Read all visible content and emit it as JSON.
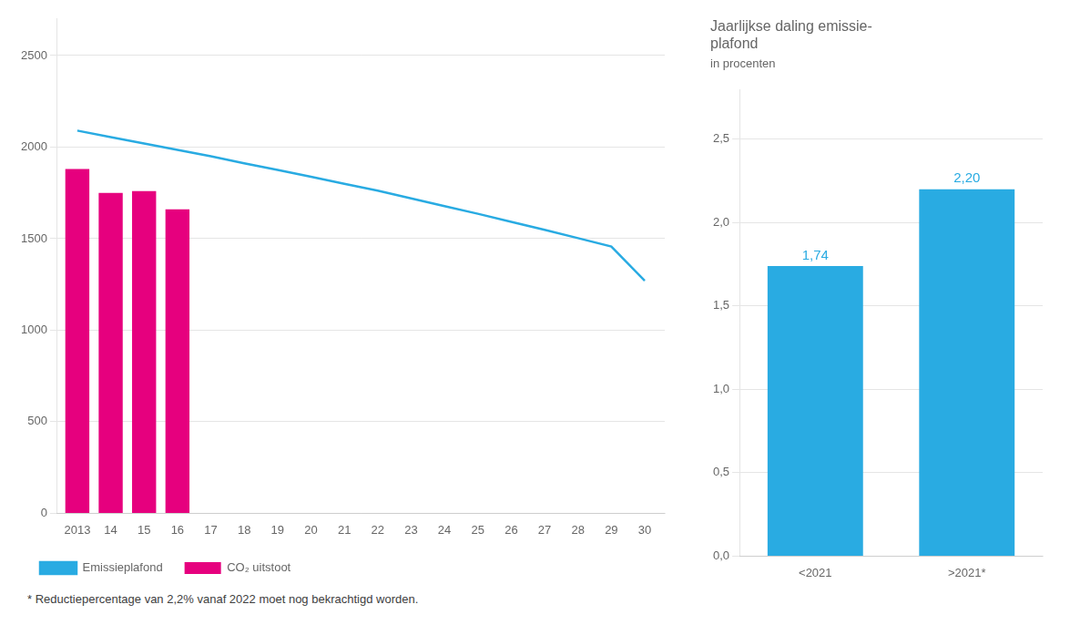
{
  "chart_data": [
    {
      "type": "bar",
      "x": [
        2013,
        2014,
        2015,
        2016,
        2017,
        2018,
        2019,
        2020,
        2021,
        2022,
        2023,
        2024,
        2025,
        2026,
        2027,
        2028,
        2029,
        2030
      ],
      "series": [
        {
          "name": "CO₂ uitstoot",
          "type": "bar",
          "color": "#E6007E",
          "values": [
            1880,
            1750,
            1760,
            1660,
            null,
            null,
            null,
            null,
            null,
            null,
            null,
            null,
            null,
            null,
            null,
            null,
            null,
            null
          ]
        },
        {
          "name": "Emissieplafond",
          "type": "line",
          "color": "#29ABE2",
          "values": [
            2090,
            2055,
            2020,
            1985,
            1950,
            1912,
            1875,
            1838,
            1800,
            1762,
            1720,
            1678,
            1636,
            1592,
            1548,
            1503,
            1457,
            1270
          ]
        }
      ],
      "xlim": [
        2012.4,
        2030.6
      ],
      "xticks": [
        2013,
        {
          "value": 2014,
          "label": "14"
        },
        {
          "value": 2015,
          "label": "15"
        },
        {
          "value": 2016,
          "label": "16"
        },
        {
          "value": 2017,
          "label": "17"
        },
        {
          "value": 2018,
          "label": "18"
        },
        {
          "value": 2019,
          "label": "19"
        },
        {
          "value": 2020,
          "label": "20"
        },
        {
          "value": 2021,
          "label": "21"
        },
        {
          "value": 2022,
          "label": "22"
        },
        {
          "value": 2023,
          "label": "23"
        },
        {
          "value": 2024,
          "label": "24"
        },
        {
          "value": 2025,
          "label": "25"
        },
        {
          "value": 2026,
          "label": "26"
        },
        {
          "value": 2027,
          "label": "27"
        },
        {
          "value": 2028,
          "label": "28"
        },
        {
          "value": 2029,
          "label": "29"
        },
        {
          "value": 2030,
          "label": "30"
        }
      ],
      "ylim": [
        0,
        2700
      ],
      "yticks": [
        0,
        500,
        1000,
        1500,
        2000,
        2500
      ],
      "grid": true,
      "legend": "bottom left",
      "annotations": [
        "* Reductiepercentage van 2,2% vanaf 2022 moet nog bekrachtigd worden."
      ]
    },
    {
      "type": "bar",
      "title": [
        "Jaarlijkse daling emissie-",
        "plafond"
      ],
      "subtitle": "in procenten",
      "categories": [
        "<2021",
        ">2021*"
      ],
      "values": [
        1.74,
        2.2
      ],
      "value_labels": [
        "1,74",
        "2,20"
      ],
      "data_labels": true,
      "color": "#29ABE2",
      "ylim": [
        0,
        2.8
      ],
      "yticks": [
        {
          "value": 0.0,
          "label": "0,0"
        },
        {
          "value": 0.5,
          "label": "0,5"
        },
        {
          "value": 1.0,
          "label": "1,0"
        },
        {
          "value": 1.5,
          "label": "1,5"
        },
        {
          "value": 2.0,
          "label": "2,0"
        },
        {
          "value": 2.5,
          "label": "2,5"
        }
      ],
      "grid": true
    }
  ]
}
